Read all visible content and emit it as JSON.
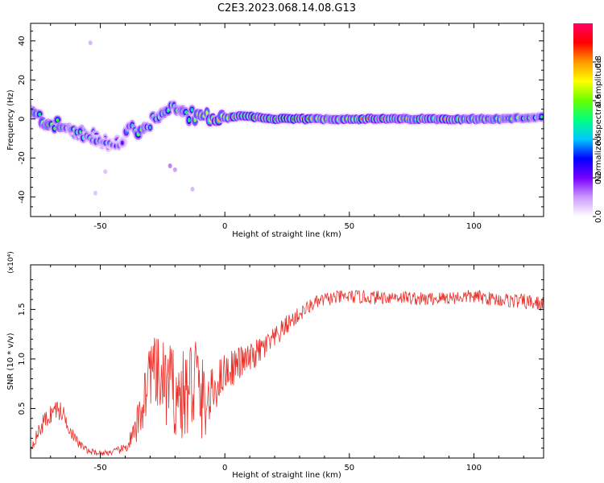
{
  "title": "C2E3.2023.068.14.08.G13",
  "chart_data": [
    {
      "type": "heatmap",
      "xlabel": "Height of straight line (km)",
      "ylabel": "Frequency (Hz)",
      "xlim": [
        -78,
        128
      ],
      "ylim": [
        -50,
        49
      ],
      "x_ticks": [
        -50,
        0,
        50,
        100
      ],
      "y_ticks": [
        -40,
        -20,
        0,
        20,
        40
      ],
      "colorbar": {
        "label": "Normalized spectral amplitude",
        "range": [
          0.0,
          1.0
        ],
        "ticks": [
          0.0,
          0.2,
          0.4,
          0.6,
          0.8
        ],
        "tick_labels": [
          "0.0",
          "0.2",
          "0.4",
          "0.6",
          "0.8"
        ],
        "colors": [
          "#ffffff",
          "#cc99ff",
          "#7700ff",
          "#0000ff",
          "#00c8ff",
          "#00ff80",
          "#66ff00",
          "#ffff00",
          "#ff9900",
          "#ff0000",
          "#ff0066"
        ]
      },
      "ridge": [
        {
          "x": -78,
          "y": 3,
          "amp": 0.5
        },
        {
          "x": -72,
          "y": -1,
          "amp": 0.6
        },
        {
          "x": -66,
          "y": -4,
          "amp": 0.55
        },
        {
          "x": -60,
          "y": -7,
          "amp": 0.5
        },
        {
          "x": -54,
          "y": -9,
          "amp": 0.45
        },
        {
          "x": -48,
          "y": -11,
          "amp": 0.3
        },
        {
          "x": -42,
          "y": -13,
          "amp": 0.25
        },
        {
          "x": -38,
          "y": -4,
          "amp": 0.45
        },
        {
          "x": -34,
          "y": -6,
          "amp": 0.55
        },
        {
          "x": -30,
          "y": -2,
          "amp": 0.5
        },
        {
          "x": -26,
          "y": 4,
          "amp": 0.45
        },
        {
          "x": -22,
          "y": 6,
          "amp": 0.55
        },
        {
          "x": -18,
          "y": 4,
          "amp": 0.5
        },
        {
          "x": -14,
          "y": 2,
          "amp": 0.55
        },
        {
          "x": -10,
          "y": 1,
          "amp": 0.6
        },
        {
          "x": -5,
          "y": 0.5,
          "amp": 0.7
        },
        {
          "x": 0,
          "y": 0.5,
          "amp": 0.75
        },
        {
          "x": 5,
          "y": 1.5,
          "amp": 0.85
        },
        {
          "x": 10,
          "y": 1.5,
          "amp": 0.9
        },
        {
          "x": 15,
          "y": 0.5,
          "amp": 0.7
        },
        {
          "x": 20,
          "y": 0,
          "amp": 0.85
        },
        {
          "x": 30,
          "y": 0,
          "amp": 0.9
        },
        {
          "x": 40,
          "y": 0,
          "amp": 0.7
        },
        {
          "x": 50,
          "y": 0,
          "amp": 0.75
        },
        {
          "x": 60,
          "y": 0,
          "amp": 0.85
        },
        {
          "x": 70,
          "y": 0,
          "amp": 0.7
        },
        {
          "x": 80,
          "y": 0,
          "amp": 0.8
        },
        {
          "x": 90,
          "y": 0,
          "amp": 0.75
        },
        {
          "x": 100,
          "y": 0,
          "amp": 0.7
        },
        {
          "x": 110,
          "y": 0,
          "amp": 0.6
        },
        {
          "x": 120,
          "y": 0.5,
          "amp": 0.55
        },
        {
          "x": 128,
          "y": 1,
          "amp": 0.5
        }
      ],
      "lower_branch": [
        {
          "x": -62,
          "y": -6,
          "amp": 0.45
        },
        {
          "x": -56,
          "y": -9,
          "amp": 0.45
        },
        {
          "x": -50,
          "y": -12,
          "amp": 0.35
        },
        {
          "x": -44,
          "y": -14,
          "amp": 0.3
        },
        {
          "x": -40,
          "y": -13,
          "amp": 0.25
        }
      ],
      "speckles": [
        {
          "x": -54,
          "y": 39,
          "amp": 0.1
        },
        {
          "x": -22,
          "y": -24,
          "amp": 0.15
        },
        {
          "x": -20,
          "y": -26,
          "amp": 0.12
        },
        {
          "x": -13,
          "y": -36,
          "amp": 0.1
        },
        {
          "x": -52,
          "y": -38,
          "amp": 0.08
        },
        {
          "x": -48,
          "y": -27,
          "amp": 0.08
        }
      ]
    },
    {
      "type": "line",
      "xlabel": "Height of straight line (km)",
      "ylabel": "SNR (10 * v/v)",
      "y_scale_label": "(x10⁴)",
      "xlim": [
        -78,
        128
      ],
      "ylim": [
        0.0,
        1.95
      ],
      "x_ticks": [
        -50,
        0,
        50,
        100
      ],
      "y_ticks": [
        0.5,
        1.0,
        1.5
      ],
      "y_tick_labels": [
        "0.5",
        "1.0",
        "1.5"
      ],
      "series": [
        {
          "color": "#e8302a",
          "x": [
            -78,
            -73,
            -68,
            -65,
            -60,
            -55,
            -50,
            -45,
            -40,
            -36,
            -33,
            -30,
            -27,
            -24,
            -21,
            -18,
            -15,
            -12,
            -10,
            -7,
            -4,
            -1,
            2,
            5,
            10,
            15,
            20,
            25,
            30,
            35,
            40,
            45,
            50,
            60,
            70,
            80,
            90,
            100,
            110,
            120,
            128
          ],
          "y": [
            0.1,
            0.35,
            0.5,
            0.45,
            0.18,
            0.07,
            0.05,
            0.06,
            0.1,
            0.25,
            0.55,
            0.9,
            0.8,
            0.75,
            0.7,
            0.6,
            0.65,
            0.85,
            0.6,
            0.55,
            0.7,
            0.85,
            0.9,
            0.95,
            1.0,
            1.1,
            1.2,
            1.35,
            1.45,
            1.55,
            1.6,
            1.62,
            1.63,
            1.62,
            1.63,
            1.6,
            1.62,
            1.63,
            1.6,
            1.58,
            1.55
          ],
          "noise_amp": [
            0.04,
            0.1,
            0.1,
            0.1,
            0.06,
            0.03,
            0.03,
            0.03,
            0.05,
            0.15,
            0.3,
            0.35,
            0.4,
            0.45,
            0.45,
            0.45,
            0.5,
            0.6,
            0.5,
            0.3,
            0.25,
            0.2,
            0.2,
            0.18,
            0.15,
            0.14,
            0.12,
            0.1,
            0.08,
            0.07,
            0.07,
            0.07,
            0.07,
            0.07,
            0.07,
            0.07,
            0.07,
            0.07,
            0.07,
            0.08,
            0.08
          ]
        }
      ]
    }
  ]
}
